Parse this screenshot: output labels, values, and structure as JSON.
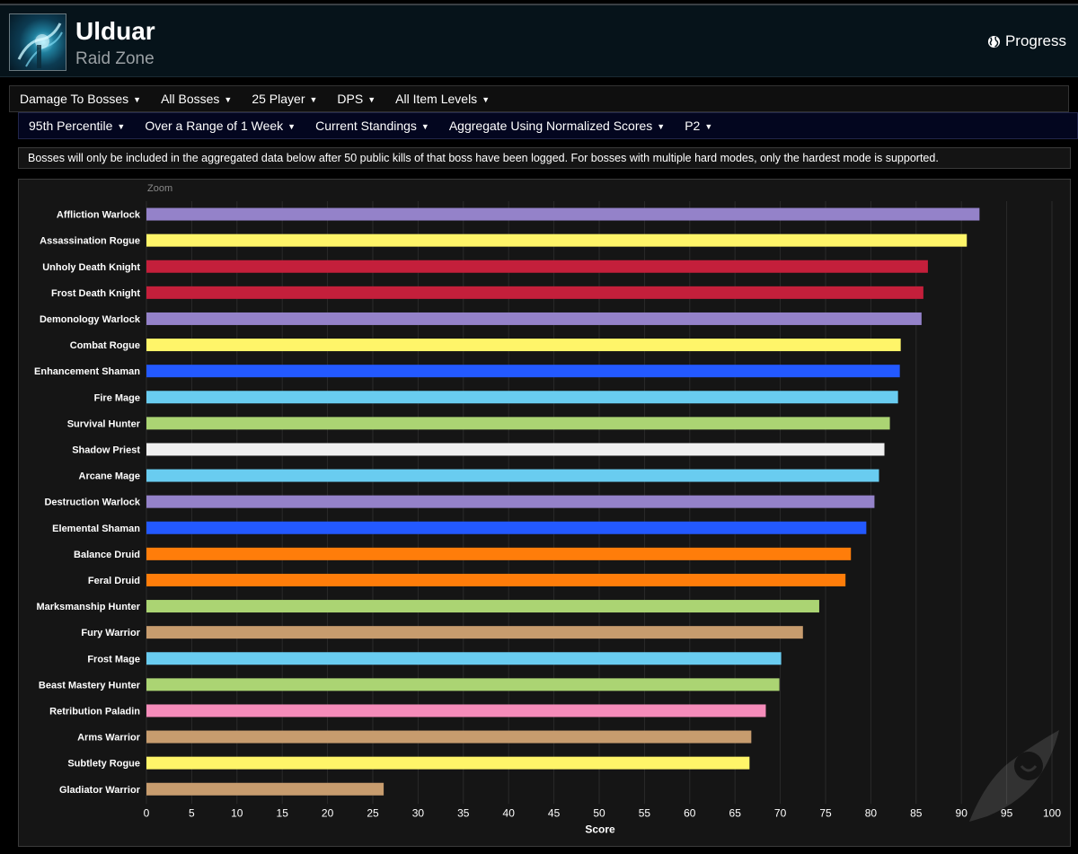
{
  "header": {
    "title": "Ulduar",
    "subtitle": "Raid Zone",
    "progress_label": "Progress"
  },
  "filters_row1": [
    "Damage To Bosses",
    "All Bosses",
    "25 Player",
    "DPS",
    "All Item Levels"
  ],
  "filters_row2": [
    "95th Percentile",
    "Over a Range of 1 Week",
    "Current Standings",
    "Aggregate Using Normalized Scores",
    "P2"
  ],
  "notice": "Bosses will only be included in the aggregated data below after 50 public kills of that boss have been logged. For bosses with multiple hard modes, only the hardest mode is supported.",
  "chart_zoom_label": "Zoom",
  "chart_data": {
    "type": "bar",
    "orientation": "horizontal",
    "xlabel": "Score",
    "xlim": [
      0,
      100
    ],
    "xticks": [
      0,
      5,
      10,
      15,
      20,
      25,
      30,
      35,
      40,
      45,
      50,
      55,
      60,
      65,
      70,
      75,
      80,
      85,
      90,
      95,
      100
    ],
    "grid": true,
    "categories": [
      "Affliction Warlock",
      "Assassination Rogue",
      "Unholy Death Knight",
      "Frost Death Knight",
      "Demonology Warlock",
      "Combat Rogue",
      "Enhancement Shaman",
      "Fire Mage",
      "Survival Hunter",
      "Shadow Priest",
      "Arcane Mage",
      "Destruction Warlock",
      "Elemental Shaman",
      "Balance Druid",
      "Feral Druid",
      "Marksmanship Hunter",
      "Fury Warrior",
      "Frost Mage",
      "Beast Mastery Hunter",
      "Retribution Paladin",
      "Arms Warrior",
      "Subtlety Rogue",
      "Gladiator Warrior"
    ],
    "values": [
      92.0,
      90.6,
      86.3,
      85.8,
      85.6,
      83.3,
      83.2,
      83.0,
      82.1,
      81.5,
      80.9,
      80.4,
      79.5,
      77.8,
      77.2,
      74.3,
      72.5,
      70.1,
      69.9,
      68.4,
      66.8,
      66.6,
      26.2
    ],
    "colors": [
      "#9482c9",
      "#fff569",
      "#c41f3b",
      "#c41f3b",
      "#9482c9",
      "#fff569",
      "#2359ff",
      "#69ccf0",
      "#abd473",
      "#f0f0f0",
      "#69ccf0",
      "#9482c9",
      "#2359ff",
      "#ff7d0a",
      "#ff7d0a",
      "#abd473",
      "#c79c6e",
      "#69ccf0",
      "#abd473",
      "#f58cba",
      "#c79c6e",
      "#fff569",
      "#c79c6e"
    ]
  }
}
